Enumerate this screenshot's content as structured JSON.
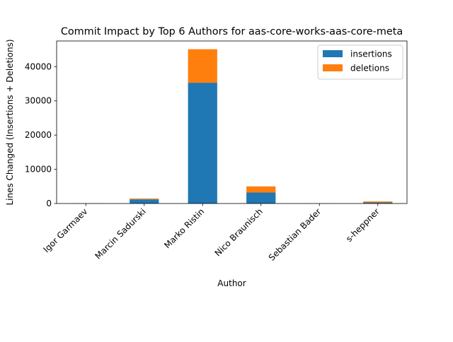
{
  "chart_data": {
    "type": "bar",
    "stacked": true,
    "title": "Commit Impact by Top 6 Authors for aas-core-works-aas-core-meta",
    "xlabel": "Author",
    "ylabel": "Lines Changed (Insertions + Deletions)",
    "categories": [
      "Igor Garmaev",
      "Marcin Sadurski",
      "Marko Ristin",
      "Nico Braunisch",
      "Sebastian Bader",
      "s-heppner"
    ],
    "series": [
      {
        "name": "insertions",
        "color": "#1f77b4",
        "values": [
          40,
          1200,
          35300,
          3200,
          20,
          300
        ]
      },
      {
        "name": "deletions",
        "color": "#ff7f0e",
        "values": [
          10,
          250,
          9800,
          1800,
          10,
          300
        ]
      }
    ],
    "ylim": [
      0,
      47500
    ],
    "yticks": [
      0,
      10000,
      20000,
      30000,
      40000
    ],
    "grid": false,
    "legend_position": "top-right"
  }
}
